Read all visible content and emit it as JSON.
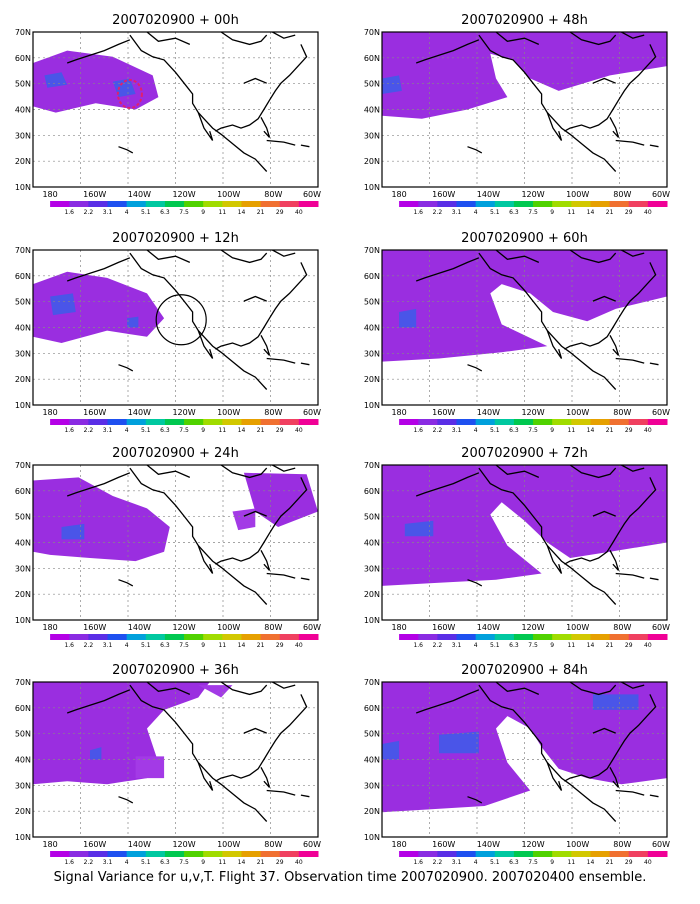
{
  "figure": {
    "caption": "Signal Variance for u,v,T. Flight 37. Observation time 2007020900. 2007020400 ensemble."
  },
  "axes": {
    "lat_labels": [
      "70N",
      "60N",
      "50N",
      "40N",
      "30N",
      "20N",
      "10N"
    ],
    "lon_labels": [
      "180",
      "160W",
      "140W",
      "120W",
      "100W",
      "80W",
      "60W"
    ]
  },
  "colorbar": {
    "labels": [
      "1.6",
      "2.2",
      "3.1",
      "4",
      "5.1",
      "6.3",
      "7.5",
      "9",
      "11",
      "14",
      "21",
      "29",
      "40"
    ],
    "colors": [
      "#b400e6",
      "#8a2be2",
      "#5a2ee6",
      "#1e50f0",
      "#00a0dc",
      "#00c8a0",
      "#00c850",
      "#50d200",
      "#a0dc00",
      "#d2c800",
      "#e6a000",
      "#f07030",
      "#f04060",
      "#f00096"
    ]
  },
  "panels": [
    {
      "title": "2007020900 + 00h"
    },
    {
      "title": "2007020900 + 48h"
    },
    {
      "title": "2007020900 + 12h"
    },
    {
      "title": "2007020900 + 60h"
    },
    {
      "title": "2007020900 + 24h"
    },
    {
      "title": "2007020900 + 72h"
    },
    {
      "title": "2007020900 + 36h"
    },
    {
      "title": "2007020900 + 84h"
    }
  ]
}
